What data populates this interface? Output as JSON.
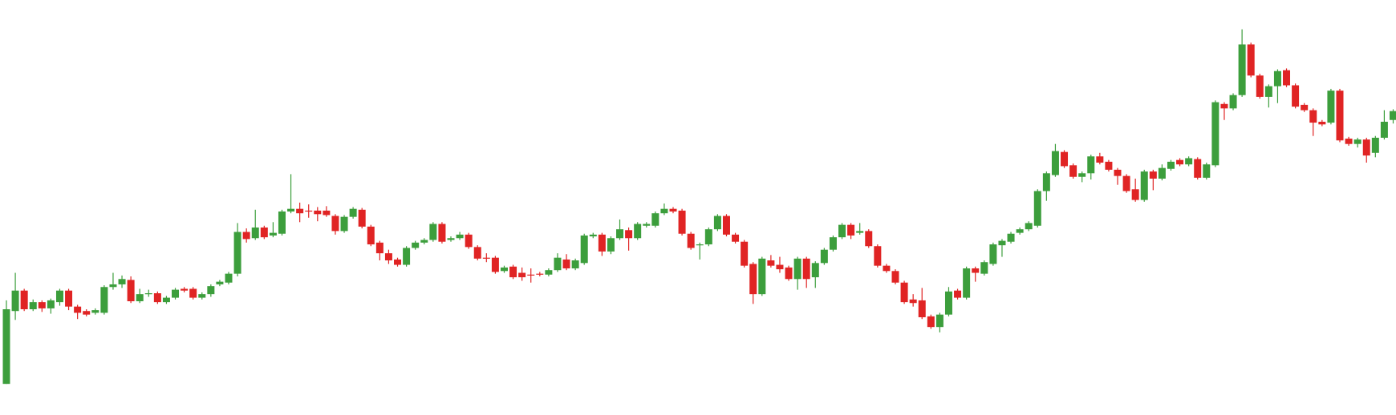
{
  "chart_data": {
    "type": "candlestick",
    "up_color": "#3c9e3c",
    "down_color": "#e02424",
    "ylim": [
      0,
      467
    ],
    "open": [
      35,
      117,
      140,
      119,
      127,
      120,
      127,
      140,
      122,
      117,
      115,
      115,
      144,
      147,
      152,
      128,
      136,
      137,
      127,
      132,
      142,
      142,
      132,
      136,
      147,
      149,
      159,
      206,
      199,
      211,
      202,
      204,
      229,
      232,
      230,
      230,
      230,
      224,
      207,
      223,
      231,
      212,
      194,
      182,
      175,
      169,
      188,
      194,
      197,
      215,
      197,
      199,
      203,
      189,
      177,
      177,
      162,
      167,
      160,
      158,
      159,
      158,
      163,
      175,
      165,
      171,
      201,
      203,
      184,
      199,
      208,
      199,
      213,
      213,
      227,
      232,
      230,
      204,
      191,
      192,
      209,
      224,
      203,
      195,
      170,
      136,
      174,
      169,
      166,
      153,
      176,
      155,
      171,
      186,
      200,
      214,
      205,
      207,
      190,
      168,
      162,
      149,
      130,
      129,
      111,
      99,
      113,
      140,
      132,
      165,
      159,
      170,
      191,
      195,
      205,
      209,
      213,
      252,
      270,
      296,
      281,
      268,
      272,
      291,
      285,
      276,
      269,
      254,
      242,
      274,
      266,
      277,
      287,
      282,
      288,
      267,
      281,
      350,
      345,
      360,
      417,
      382,
      358,
      370,
      388,
      371,
      349,
      343,
      330,
      329,
      365,
      311,
      305,
      310,
      295,
      312,
      332
    ],
    "high": [
      129,
      160,
      142,
      130,
      129,
      131,
      142,
      142,
      124,
      119,
      120,
      146,
      160,
      157,
      156,
      142,
      141,
      139,
      134,
      143,
      144,
      144,
      138,
      147,
      152,
      161,
      216,
      210,
      231,
      213,
      217,
      231,
      271,
      239,
      237,
      234,
      235,
      226,
      225,
      234,
      233,
      214,
      196,
      186,
      177,
      190,
      196,
      199,
      217,
      217,
      201,
      206,
      205,
      191,
      182,
      179,
      168,
      169,
      166,
      165,
      161,
      165,
      182,
      181,
      176,
      204,
      205,
      205,
      201,
      220,
      211,
      217,
      217,
      229,
      238,
      234,
      232,
      206,
      194,
      211,
      226,
      226,
      205,
      197,
      172,
      178,
      180,
      178,
      168,
      178,
      178,
      173,
      188,
      202,
      216,
      216,
      216,
      209,
      192,
      170,
      164,
      151,
      136,
      143,
      113,
      115,
      144,
      142,
      167,
      167,
      174,
      194,
      198,
      206,
      211,
      218,
      254,
      274,
      305,
      298,
      283,
      274,
      293,
      295,
      287,
      278,
      271,
      266,
      276,
      276,
      282,
      287,
      289,
      291,
      290,
      284,
      354,
      352,
      362,
      434,
      419,
      384,
      372,
      389,
      390,
      373,
      351,
      345,
      332,
      367,
      367,
      313,
      312,
      312,
      314,
      343,
      344
    ],
    "low": [
      35,
      107,
      117,
      117,
      116,
      114,
      123,
      118,
      108,
      111,
      113,
      113,
      141,
      143,
      126,
      126,
      133,
      125,
      125,
      130,
      138,
      130,
      130,
      133,
      145,
      147,
      156,
      194,
      197,
      198,
      200,
      202,
      227,
      217,
      222,
      218,
      223,
      203,
      205,
      221,
      210,
      190,
      174,
      170,
      167,
      167,
      186,
      192,
      195,
      193,
      195,
      197,
      187,
      174,
      172,
      159,
      160,
      153,
      151,
      149,
      156,
      156,
      161,
      163,
      163,
      169,
      199,
      179,
      181,
      197,
      185,
      197,
      211,
      211,
      225,
      227,
      202,
      186,
      175,
      190,
      207,
      201,
      193,
      166,
      125,
      134,
      166,
      160,
      151,
      141,
      143,
      143,
      169,
      184,
      198,
      198,
      203,
      188,
      166,
      160,
      147,
      125,
      122,
      108,
      97,
      93,
      111,
      130,
      130,
      150,
      157,
      168,
      178,
      193,
      203,
      207,
      211,
      241,
      268,
      278,
      266,
      262,
      265,
      282,
      274,
      259,
      250,
      240,
      240,
      253,
      264,
      275,
      280,
      280,
      265,
      265,
      279,
      332,
      343,
      358,
      380,
      356,
      346,
      351,
      369,
      345,
      341,
      314,
      325,
      327,
      307,
      303,
      301,
      284,
      290,
      310,
      328
    ],
    "close": [
      119,
      140,
      119,
      127,
      120,
      129,
      140,
      122,
      115,
      113,
      118,
      144,
      147,
      153,
      128,
      136,
      137,
      127,
      132,
      141,
      140,
      132,
      136,
      145,
      150,
      159,
      206,
      198,
      211,
      200,
      205,
      229,
      232,
      227,
      229,
      226,
      225,
      207,
      223,
      232,
      212,
      192,
      182,
      174,
      169,
      188,
      194,
      197,
      215,
      195,
      199,
      203,
      189,
      176,
      176,
      161,
      166,
      155,
      155,
      157,
      158,
      163,
      177,
      165,
      174,
      202,
      203,
      184,
      199,
      209,
      199,
      215,
      215,
      227,
      232,
      229,
      204,
      188,
      192,
      209,
      224,
      203,
      195,
      168,
      136,
      176,
      168,
      164,
      153,
      176,
      153,
      171,
      186,
      200,
      214,
      202,
      207,
      190,
      168,
      162,
      149,
      127,
      126,
      110,
      99,
      113,
      139,
      132,
      165,
      160,
      172,
      192,
      196,
      204,
      209,
      216,
      252,
      272,
      297,
      280,
      268,
      272,
      291,
      284,
      276,
      269,
      252,
      242,
      274,
      266,
      278,
      285,
      282,
      289,
      267,
      282,
      352,
      345,
      360,
      417,
      382,
      358,
      370,
      387,
      371,
      347,
      343,
      329,
      327,
      365,
      309,
      305,
      310,
      292,
      312,
      330,
      342
    ]
  }
}
